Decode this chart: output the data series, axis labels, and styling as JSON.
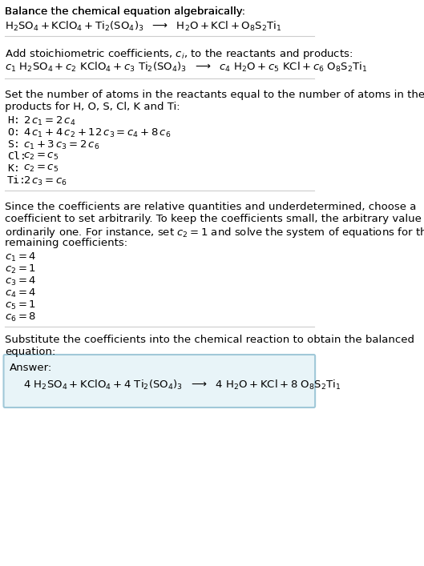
{
  "title_line1": "Balance the chemical equation algebraically:",
  "title_line2": "H_2SO_4 + KClO_4 + Ti_2(SO_4)_3  ⟶  H_2O + KCl + O_8S_2Ti_1",
  "section2_intro": "Add stoichiometric coefficients, $c_i$, to the reactants and products:",
  "section2_eq": "c_1 H_2SO_4 + c_2 KClO_4 + c_3 Ti_2(SO_4)_3  ⟶  c_4 H_2O + c_5 KCl + c_6 O_8S_2Ti_1",
  "section3_intro1": "Set the number of atoms in the reactants equal to the number of atoms in the",
  "section3_intro2": "products for H, O, S, Cl, K and Ti:",
  "atom_equations": [
    [
      "H:",
      "2 c_1 = 2 c_4"
    ],
    [
      "O:",
      "4 c_1 + 4 c_2 + 12 c_3 = c_4 + 8 c_6"
    ],
    [
      "S:",
      "c_1 + 3 c_3 = 2 c_6"
    ],
    [
      "Cl:",
      "c_2 = c_5"
    ],
    [
      "K:",
      "c_2 = c_5"
    ],
    [
      "Ti:",
      "2 c_3 = c_6"
    ]
  ],
  "section4_intro": "Since the coefficients are relative quantities and underdetermined, choose a\ncoefficient to set arbitrarily. To keep the coefficients small, the arbitrary value is\nordinarily one. For instance, set $c_2 = 1$ and solve the system of equations for the\nremaining coefficients:",
  "coeff_values": [
    "c_1 = 4",
    "c_2 = 1",
    "c_3 = 4",
    "c_4 = 4",
    "c_5 = 1",
    "c_6 = 8"
  ],
  "section5_intro1": "Substitute the coefficients into the chemical reaction to obtain the balanced",
  "section5_intro2": "equation:",
  "answer_label": "Answer:",
  "answer_eq": "4 H_2SO_4 + KClO_4 + 4 Ti_2(SO_4)_3  ⟶  4 H_2O + KCl + 8 O_8S_2Ti_1",
  "bg_color": "#ffffff",
  "text_color": "#000000",
  "answer_box_color": "#e8f4f8",
  "answer_box_border": "#a0c8d8",
  "font_size": 9.5,
  "mono_font_size": 9.5
}
